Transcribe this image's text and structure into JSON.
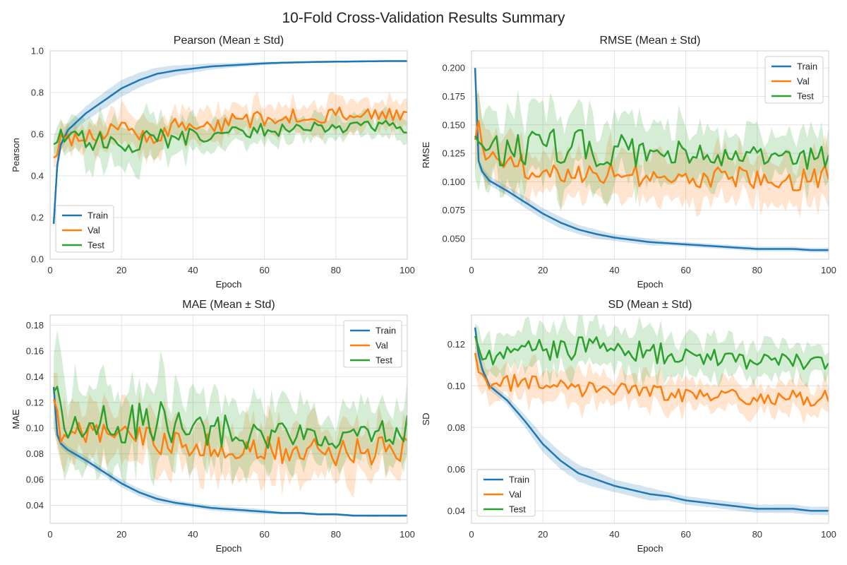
{
  "figure": {
    "title": "10-Fold Cross-Validation Results Summary",
    "series_colors": {
      "Train": "#1f77b4",
      "Val": "#ff7f0e",
      "Test": "#2ca02c"
    },
    "plot_background": "#ffffff",
    "grid_color": "#e3e3e3"
  },
  "chart_data": [
    {
      "type": "line",
      "title": "Pearson (Mean ± Std)",
      "xlabel": "Epoch",
      "ylabel": "Pearson",
      "xlim": [
        0,
        100
      ],
      "ylim": [
        0,
        1
      ],
      "xticks": [
        0,
        20,
        40,
        60,
        80,
        100
      ],
      "yticks": [
        0,
        0.2,
        0.4,
        0.6,
        0.8,
        1.0
      ],
      "ytick_labels": [
        "0.0",
        "0.2",
        "0.4",
        "0.6",
        "0.8",
        "1.0"
      ],
      "grid": true,
      "legend_position": "lower-left",
      "x_keypoints": [
        1,
        2,
        3,
        5,
        10,
        15,
        20,
        25,
        30,
        35,
        40,
        45,
        50,
        55,
        60,
        65,
        70,
        75,
        80,
        85,
        90,
        95,
        100
      ],
      "series": [
        {
          "name": "Train",
          "mean": [
            0.17,
            0.45,
            0.55,
            0.62,
            0.7,
            0.76,
            0.82,
            0.86,
            0.89,
            0.905,
            0.915,
            0.925,
            0.93,
            0.935,
            0.94,
            0.943,
            0.945,
            0.947,
            0.948,
            0.949,
            0.95,
            0.951,
            0.951
          ],
          "std": [
            0.04,
            0.04,
            0.03,
            0.03,
            0.035,
            0.04,
            0.04,
            0.035,
            0.03,
            0.025,
            0.02,
            0.015,
            0.012,
            0.01,
            0.008,
            0.006,
            0.005,
            0.005,
            0.005,
            0.005,
            0.005,
            0.005,
            0.005
          ]
        },
        {
          "name": "Val",
          "mean": [
            0.48,
            0.52,
            0.62,
            0.57,
            0.6,
            0.6,
            0.62,
            0.6,
            0.6,
            0.64,
            0.64,
            0.62,
            0.66,
            0.66,
            0.68,
            0.69,
            0.69,
            0.68,
            0.69,
            0.7,
            0.7,
            0.69,
            0.68
          ],
          "std": [
            0.04,
            0.06,
            0.06,
            0.07,
            0.07,
            0.08,
            0.08,
            0.08,
            0.08,
            0.07,
            0.07,
            0.07,
            0.07,
            0.07,
            0.07,
            0.07,
            0.07,
            0.07,
            0.07,
            0.07,
            0.06,
            0.06,
            0.06
          ]
        },
        {
          "name": "Test",
          "mean": [
            0.54,
            0.56,
            0.6,
            0.57,
            0.58,
            0.57,
            0.58,
            0.56,
            0.57,
            0.58,
            0.6,
            0.6,
            0.6,
            0.61,
            0.62,
            0.62,
            0.63,
            0.63,
            0.63,
            0.64,
            0.64,
            0.64,
            0.63
          ],
          "std": [
            0.06,
            0.06,
            0.06,
            0.08,
            0.1,
            0.1,
            0.11,
            0.11,
            0.1,
            0.09,
            0.08,
            0.07,
            0.07,
            0.06,
            0.06,
            0.05,
            0.05,
            0.05,
            0.05,
            0.05,
            0.05,
            0.05,
            0.05
          ]
        }
      ]
    },
    {
      "type": "line",
      "title": "RMSE (Mean ± Std)",
      "xlabel": "Epoch",
      "ylabel": "RMSE",
      "xlim": [
        0,
        100
      ],
      "ylim": [
        0.032,
        0.215
      ],
      "xticks": [
        0,
        20,
        40,
        60,
        80,
        100
      ],
      "yticks": [
        0.05,
        0.075,
        0.1,
        0.125,
        0.15,
        0.175,
        0.2
      ],
      "ytick_labels": [
        "0.050",
        "0.075",
        "0.100",
        "0.125",
        "0.150",
        "0.175",
        "0.200"
      ],
      "grid": true,
      "legend_position": "upper-right",
      "x_keypoints": [
        1,
        2,
        3,
        5,
        10,
        15,
        20,
        25,
        30,
        35,
        40,
        45,
        50,
        55,
        60,
        65,
        70,
        75,
        80,
        85,
        90,
        95,
        100
      ],
      "series": [
        {
          "name": "Train",
          "mean": [
            0.2,
            0.118,
            0.109,
            0.101,
            0.092,
            0.082,
            0.072,
            0.064,
            0.058,
            0.054,
            0.051,
            0.049,
            0.047,
            0.046,
            0.045,
            0.044,
            0.043,
            0.042,
            0.041,
            0.041,
            0.041,
            0.04,
            0.04
          ],
          "std": [
            0.006,
            0.005,
            0.004,
            0.004,
            0.004,
            0.005,
            0.005,
            0.005,
            0.004,
            0.004,
            0.003,
            0.003,
            0.003,
            0.002,
            0.002,
            0.002,
            0.002,
            0.002,
            0.002,
            0.002,
            0.002,
            0.002,
            0.002
          ]
        },
        {
          "name": "Val",
          "mean": [
            0.152,
            0.14,
            0.128,
            0.12,
            0.115,
            0.113,
            0.112,
            0.111,
            0.11,
            0.109,
            0.108,
            0.107,
            0.106,
            0.105,
            0.105,
            0.104,
            0.104,
            0.103,
            0.103,
            0.103,
            0.102,
            0.104,
            0.106
          ],
          "std": [
            0.03,
            0.03,
            0.025,
            0.02,
            0.02,
            0.02,
            0.02,
            0.02,
            0.02,
            0.02,
            0.02,
            0.02,
            0.02,
            0.02,
            0.02,
            0.02,
            0.02,
            0.02,
            0.02,
            0.02,
            0.02,
            0.02,
            0.02
          ]
        },
        {
          "name": "Test",
          "mean": [
            0.155,
            0.145,
            0.14,
            0.132,
            0.13,
            0.13,
            0.13,
            0.13,
            0.13,
            0.128,
            0.127,
            0.126,
            0.125,
            0.124,
            0.123,
            0.122,
            0.121,
            0.12,
            0.12,
            0.12,
            0.12,
            0.121,
            0.123
          ],
          "std": [
            0.03,
            0.035,
            0.035,
            0.03,
            0.03,
            0.03,
            0.03,
            0.03,
            0.03,
            0.028,
            0.027,
            0.026,
            0.025,
            0.024,
            0.023,
            0.022,
            0.021,
            0.02,
            0.02,
            0.02,
            0.02,
            0.02,
            0.02
          ]
        }
      ]
    },
    {
      "type": "line",
      "title": "MAE (Mean ± Std)",
      "xlabel": "Epoch",
      "ylabel": "MAE",
      "xlim": [
        0,
        100
      ],
      "ylim": [
        0.026,
        0.188
      ],
      "xticks": [
        0,
        20,
        40,
        60,
        80,
        100
      ],
      "yticks": [
        0.04,
        0.06,
        0.08,
        0.1,
        0.12,
        0.14,
        0.16,
        0.18
      ],
      "ytick_labels": [
        "0.04",
        "0.06",
        "0.08",
        "0.10",
        "0.12",
        "0.14",
        "0.16",
        "0.18"
      ],
      "grid": true,
      "legend_position": "upper-right",
      "x_keypoints": [
        1,
        2,
        3,
        5,
        10,
        15,
        20,
        25,
        30,
        35,
        40,
        45,
        50,
        55,
        60,
        65,
        70,
        75,
        80,
        85,
        90,
        95,
        100
      ],
      "series": [
        {
          "name": "Train",
          "mean": [
            0.132,
            0.095,
            0.088,
            0.083,
            0.075,
            0.066,
            0.057,
            0.05,
            0.045,
            0.042,
            0.04,
            0.038,
            0.037,
            0.036,
            0.035,
            0.034,
            0.034,
            0.033,
            0.033,
            0.032,
            0.032,
            0.032,
            0.032
          ],
          "std": [
            0.003,
            0.003,
            0.003,
            0.003,
            0.003,
            0.003,
            0.003,
            0.003,
            0.003,
            0.002,
            0.002,
            0.002,
            0.002,
            0.002,
            0.002,
            0.001,
            0.001,
            0.001,
            0.001,
            0.001,
            0.001,
            0.001,
            0.001
          ]
        },
        {
          "name": "Val",
          "mean": [
            0.125,
            0.11,
            0.1,
            0.097,
            0.095,
            0.093,
            0.092,
            0.091,
            0.09,
            0.088,
            0.087,
            0.086,
            0.085,
            0.084,
            0.083,
            0.082,
            0.082,
            0.081,
            0.081,
            0.081,
            0.082,
            0.083,
            0.085
          ],
          "std": [
            0.03,
            0.03,
            0.025,
            0.02,
            0.02,
            0.02,
            0.02,
            0.02,
            0.02,
            0.02,
            0.02,
            0.02,
            0.02,
            0.02,
            0.02,
            0.02,
            0.02,
            0.02,
            0.02,
            0.02,
            0.02,
            0.02,
            0.02
          ]
        },
        {
          "name": "Test",
          "mean": [
            0.13,
            0.115,
            0.108,
            0.105,
            0.104,
            0.104,
            0.104,
            0.104,
            0.105,
            0.103,
            0.1,
            0.099,
            0.098,
            0.097,
            0.097,
            0.096,
            0.096,
            0.095,
            0.095,
            0.095,
            0.095,
            0.097,
            0.1
          ],
          "std": [
            0.03,
            0.035,
            0.035,
            0.03,
            0.03,
            0.03,
            0.03,
            0.03,
            0.03,
            0.028,
            0.027,
            0.025,
            0.025,
            0.024,
            0.023,
            0.022,
            0.021,
            0.02,
            0.02,
            0.02,
            0.02,
            0.02,
            0.02
          ]
        }
      ]
    },
    {
      "type": "line",
      "title": "SD (Mean ± Std)",
      "xlabel": "Epoch",
      "ylabel": "SD",
      "xlim": [
        0,
        100
      ],
      "ylim": [
        0.034,
        0.134
      ],
      "xticks": [
        0,
        20,
        40,
        60,
        80,
        100
      ],
      "yticks": [
        0.04,
        0.06,
        0.08,
        0.1,
        0.12
      ],
      "ytick_labels": [
        "0.04",
        "0.06",
        "0.08",
        "0.10",
        "0.12"
      ],
      "grid": true,
      "legend_position": "lower-left",
      "x_keypoints": [
        1,
        2,
        3,
        5,
        10,
        15,
        20,
        25,
        30,
        35,
        40,
        45,
        50,
        55,
        60,
        65,
        70,
        75,
        80,
        85,
        90,
        95,
        100
      ],
      "series": [
        {
          "name": "Train",
          "mean": [
            0.128,
            0.115,
            0.108,
            0.1,
            0.093,
            0.083,
            0.072,
            0.064,
            0.058,
            0.055,
            0.052,
            0.05,
            0.048,
            0.047,
            0.045,
            0.044,
            0.043,
            0.042,
            0.041,
            0.041,
            0.041,
            0.04,
            0.04
          ],
          "std": [
            0.002,
            0.002,
            0.002,
            0.002,
            0.002,
            0.003,
            0.004,
            0.004,
            0.004,
            0.004,
            0.003,
            0.003,
            0.003,
            0.002,
            0.002,
            0.002,
            0.002,
            0.002,
            0.002,
            0.002,
            0.002,
            0.002,
            0.002
          ]
        },
        {
          "name": "Val",
          "mean": [
            0.113,
            0.108,
            0.105,
            0.103,
            0.102,
            0.101,
            0.101,
            0.1,
            0.099,
            0.098,
            0.098,
            0.097,
            0.097,
            0.096,
            0.096,
            0.095,
            0.095,
            0.095,
            0.094,
            0.094,
            0.094,
            0.094,
            0.095
          ],
          "std": [
            0.008,
            0.008,
            0.008,
            0.008,
            0.008,
            0.008,
            0.008,
            0.008,
            0.008,
            0.007,
            0.007,
            0.007,
            0.007,
            0.007,
            0.007,
            0.007,
            0.007,
            0.007,
            0.007,
            0.007,
            0.007,
            0.007,
            0.007
          ]
        },
        {
          "name": "Test",
          "mean": [
            0.121,
            0.117,
            0.115,
            0.114,
            0.115,
            0.116,
            0.117,
            0.118,
            0.118,
            0.118,
            0.117,
            0.116,
            0.116,
            0.115,
            0.114,
            0.113,
            0.113,
            0.112,
            0.112,
            0.112,
            0.112,
            0.112,
            0.112
          ],
          "std": [
            0.008,
            0.008,
            0.008,
            0.008,
            0.009,
            0.01,
            0.01,
            0.01,
            0.01,
            0.01,
            0.01,
            0.01,
            0.01,
            0.009,
            0.009,
            0.009,
            0.008,
            0.008,
            0.008,
            0.008,
            0.008,
            0.008,
            0.008
          ]
        }
      ]
    }
  ]
}
